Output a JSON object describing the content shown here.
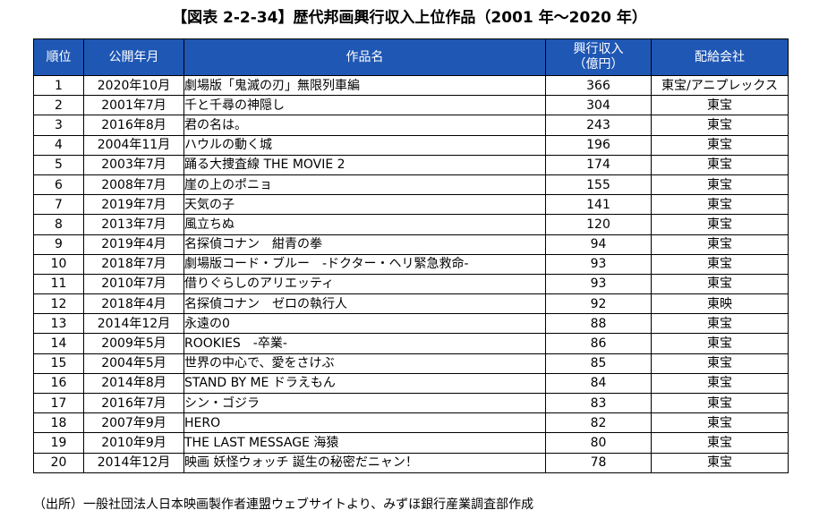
{
  "title": "【図表 2-2-34】歴代邦画興行収入上位作品（2001 年～2020 年）",
  "table": {
    "headers": {
      "rank": "順位",
      "release": "公開年月",
      "title": "作品名",
      "revenue_line1": "興行収入",
      "revenue_line2": "（億円）",
      "distributor": "配給会社"
    },
    "rows": [
      {
        "rank": "1",
        "release": "2020年10月",
        "title": "劇場版「鬼滅の刃」無限列車編",
        "revenue": "366",
        "distributor": "東宝/アニプレックス"
      },
      {
        "rank": "2",
        "release": "2001年7月",
        "title": "千と千尋の神隠し",
        "revenue": "304",
        "distributor": "東宝"
      },
      {
        "rank": "3",
        "release": "2016年8月",
        "title": "君の名は。",
        "revenue": "243",
        "distributor": "東宝"
      },
      {
        "rank": "4",
        "release": "2004年11月",
        "title": "ハウルの動く城",
        "revenue": "196",
        "distributor": "東宝"
      },
      {
        "rank": "5",
        "release": "2003年7月",
        "title": "踊る大捜査線 THE MOVIE 2",
        "revenue": "174",
        "distributor": "東宝"
      },
      {
        "rank": "6",
        "release": "2008年7月",
        "title": "崖の上のポニョ",
        "revenue": "155",
        "distributor": "東宝"
      },
      {
        "rank": "7",
        "release": "2019年7月",
        "title": "天気の子",
        "revenue": "141",
        "distributor": "東宝"
      },
      {
        "rank": "8",
        "release": "2013年7月",
        "title": "風立ちぬ",
        "revenue": "120",
        "distributor": "東宝"
      },
      {
        "rank": "9",
        "release": "2019年4月",
        "title": "名探偵コナン　紺青の拳",
        "revenue": "94",
        "distributor": "東宝"
      },
      {
        "rank": "10",
        "release": "2018年7月",
        "title": "劇場版コード・ブルー　-ドクター・ヘリ緊急救命-",
        "revenue": "93",
        "distributor": "東宝"
      },
      {
        "rank": "11",
        "release": "2010年7月",
        "title": "借りぐらしのアリエッティ",
        "revenue": "93",
        "distributor": "東宝"
      },
      {
        "rank": "12",
        "release": "2018年4月",
        "title": "名探偵コナン　ゼロの執行人",
        "revenue": "92",
        "distributor": "東映"
      },
      {
        "rank": "13",
        "release": "2014年12月",
        "title": "永遠の0",
        "revenue": "88",
        "distributor": "東宝"
      },
      {
        "rank": "14",
        "release": "2009年5月",
        "title": "ROOKIES　-卒業-",
        "revenue": "86",
        "distributor": "東宝"
      },
      {
        "rank": "15",
        "release": "2004年5月",
        "title": "世界の中心で、愛をさけぶ",
        "revenue": "85",
        "distributor": "東宝"
      },
      {
        "rank": "16",
        "release": "2014年8月",
        "title": "STAND BY ME ドラえもん",
        "revenue": "84",
        "distributor": "東宝"
      },
      {
        "rank": "17",
        "release": "2016年7月",
        "title": "シン・ゴジラ",
        "revenue": "83",
        "distributor": "東宝"
      },
      {
        "rank": "18",
        "release": "2007年9月",
        "title": "HERO",
        "revenue": "82",
        "distributor": "東宝"
      },
      {
        "rank": "19",
        "release": "2010年9月",
        "title": "THE LAST MESSAGE 海猿",
        "revenue": "80",
        "distributor": "東宝"
      },
      {
        "rank": "20",
        "release": "2014年12月",
        "title": "映画 妖怪ウォッチ 誕生の秘密だニャン！",
        "revenue": "78",
        "distributor": "東宝"
      }
    ]
  },
  "source": "（出所）一般社団法人日本映画製作者連盟ウェブサイトより、みずほ銀行産業調査部作成"
}
